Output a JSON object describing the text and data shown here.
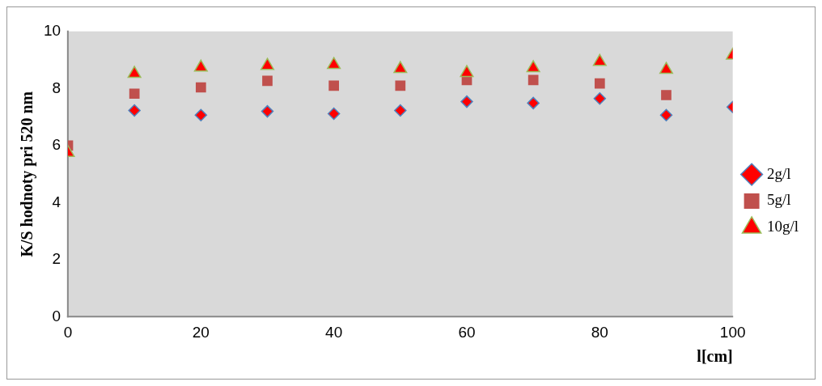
{
  "chart_data": {
    "type": "scatter",
    "ylabel": "K/S hodnoty pri 520 nm",
    "xlabel": "l[cm]",
    "x": [
      0,
      10,
      20,
      30,
      40,
      50,
      60,
      70,
      80,
      90,
      100
    ],
    "series": [
      {
        "name": "2g/l",
        "color": "#ff0000",
        "marker": "diamond",
        "values": [
          null,
          7.23,
          7.07,
          7.2,
          7.12,
          7.23,
          7.54,
          7.49,
          7.65,
          7.07,
          7.35
        ]
      },
      {
        "name": "5g/l",
        "color": "#c0504d",
        "marker": "square",
        "values": [
          6.0,
          7.82,
          8.04,
          8.27,
          8.1,
          8.1,
          8.3,
          8.3,
          8.18,
          7.77,
          null
        ]
      },
      {
        "name": "10g/l",
        "color": "#ff0000",
        "marker": "triangle",
        "values": [
          5.75,
          8.52,
          8.74,
          8.8,
          8.83,
          8.69,
          8.55,
          8.72,
          8.94,
          8.66,
          9.16
        ]
      }
    ],
    "xlim": [
      0,
      100
    ],
    "xticks": [
      0,
      20,
      40,
      60,
      80,
      100
    ],
    "ylim": [
      0,
      10
    ],
    "yticks": [
      0,
      2,
      4,
      6,
      8,
      10
    ],
    "grid": false,
    "legend": "right"
  }
}
